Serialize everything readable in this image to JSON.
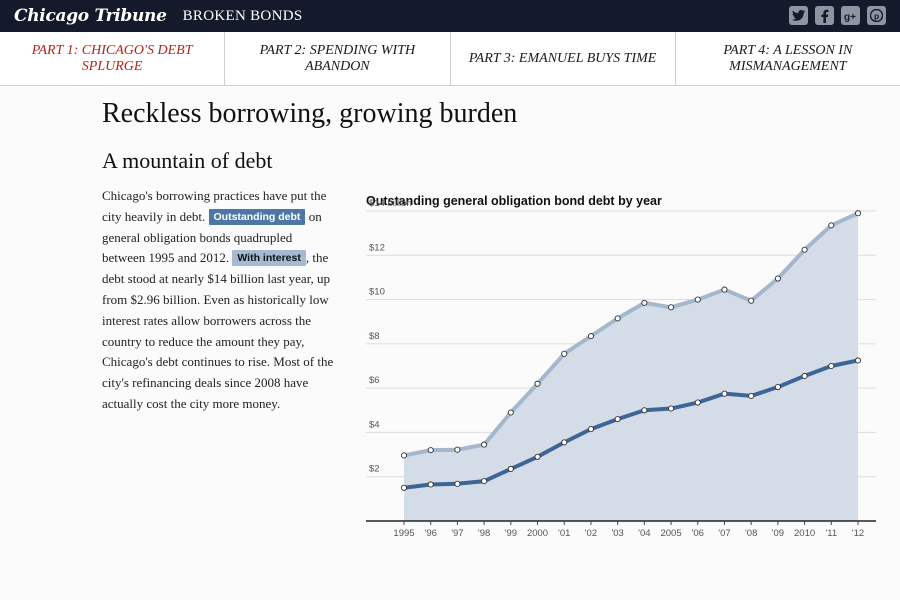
{
  "header": {
    "logo": "Chicago Tribune",
    "section": "BROKEN BONDS",
    "social": [
      {
        "name": "twitter-icon",
        "glyph": "t"
      },
      {
        "name": "facebook-icon",
        "glyph": "f"
      },
      {
        "name": "google-plus-icon",
        "glyph": "g+"
      },
      {
        "name": "pinterest-icon",
        "glyph": "p"
      }
    ]
  },
  "nav": {
    "items": [
      {
        "label": "Part 1: Chicago's debt splurge",
        "active": true
      },
      {
        "label": "Part 2: Spending with abandon",
        "active": false
      },
      {
        "label": "Part 3: Emanuel buys time",
        "active": false
      },
      {
        "label": "Part 4: A lesson in mismanagement",
        "active": false
      }
    ]
  },
  "article": {
    "title": "Reckless borrowing, growing burden",
    "subtitle": "A mountain of debt",
    "text1": "Chicago's borrowing practices have put the city heavily in debt. ",
    "toggle_outstanding": "Outstanding debt",
    "text2": " on general obligation bonds quadrupled between 1995 and 2012. ",
    "toggle_interest": "With interest",
    "text3": ", the debt stood at nearly $14 billion last year, up from $2.96 billion. Even as historically low interest rates allow borrowers across the country to reduce the amount they pay, Chicago's debt continues to rise. Most of the city's refinancing deals since 2008 have actually cost the city more money."
  },
  "chart_data": {
    "type": "area",
    "title": "Outstanding general obligation bond debt by year",
    "categories": [
      "1995",
      "'96",
      "'97",
      "'98",
      "'99",
      "2000",
      "'01",
      "'02",
      "'03",
      "'04",
      "2005",
      "'06",
      "'07",
      "'08",
      "'09",
      "2010",
      "'11",
      "'12"
    ],
    "series": [
      {
        "name": "With interest",
        "color": "#a5b7cd",
        "values": [
          2.96,
          3.2,
          3.22,
          3.45,
          4.9,
          6.2,
          7.55,
          8.35,
          9.15,
          9.85,
          9.65,
          10.0,
          10.45,
          9.95,
          10.95,
          12.25,
          13.35,
          13.9
        ]
      },
      {
        "name": "Outstanding debt",
        "color": "#3d6696",
        "values": [
          1.5,
          1.65,
          1.68,
          1.8,
          2.35,
          2.9,
          3.55,
          4.15,
          4.6,
          5.0,
          5.08,
          5.35,
          5.75,
          5.65,
          6.05,
          6.55,
          7.0,
          7.25
        ]
      }
    ],
    "y_ticks": [
      "$2",
      "$4",
      "$6",
      "$8",
      "$10",
      "$12",
      "$14 billion"
    ],
    "y_tick_values": [
      2,
      4,
      6,
      8,
      10,
      12,
      14
    ],
    "ylim": [
      0,
      14
    ],
    "area_color": "#d4dce7",
    "grid": true
  }
}
